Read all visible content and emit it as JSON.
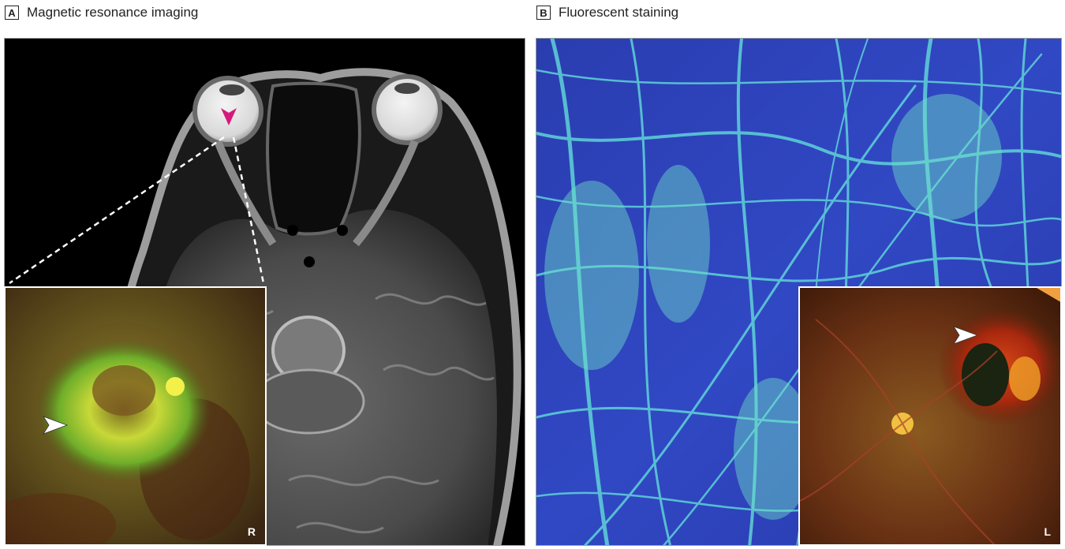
{
  "panel_a": {
    "letter": "A",
    "title": "Magnetic resonance imaging",
    "inset_corner_label": "R"
  },
  "panel_b": {
    "letter": "B",
    "title": "Fluorescent staining",
    "inset_corner_label": "L"
  },
  "colors": {
    "mri_arrow": "#d6197a",
    "fundus_arrow": "#ffffff",
    "fluor_bg": "#2d43b8",
    "fluor_fiber": "#5fd3d8"
  },
  "icons": {
    "mri_arrow": "arrowhead-down-icon",
    "fundus_arrows": "arrowhead-right-icon"
  }
}
